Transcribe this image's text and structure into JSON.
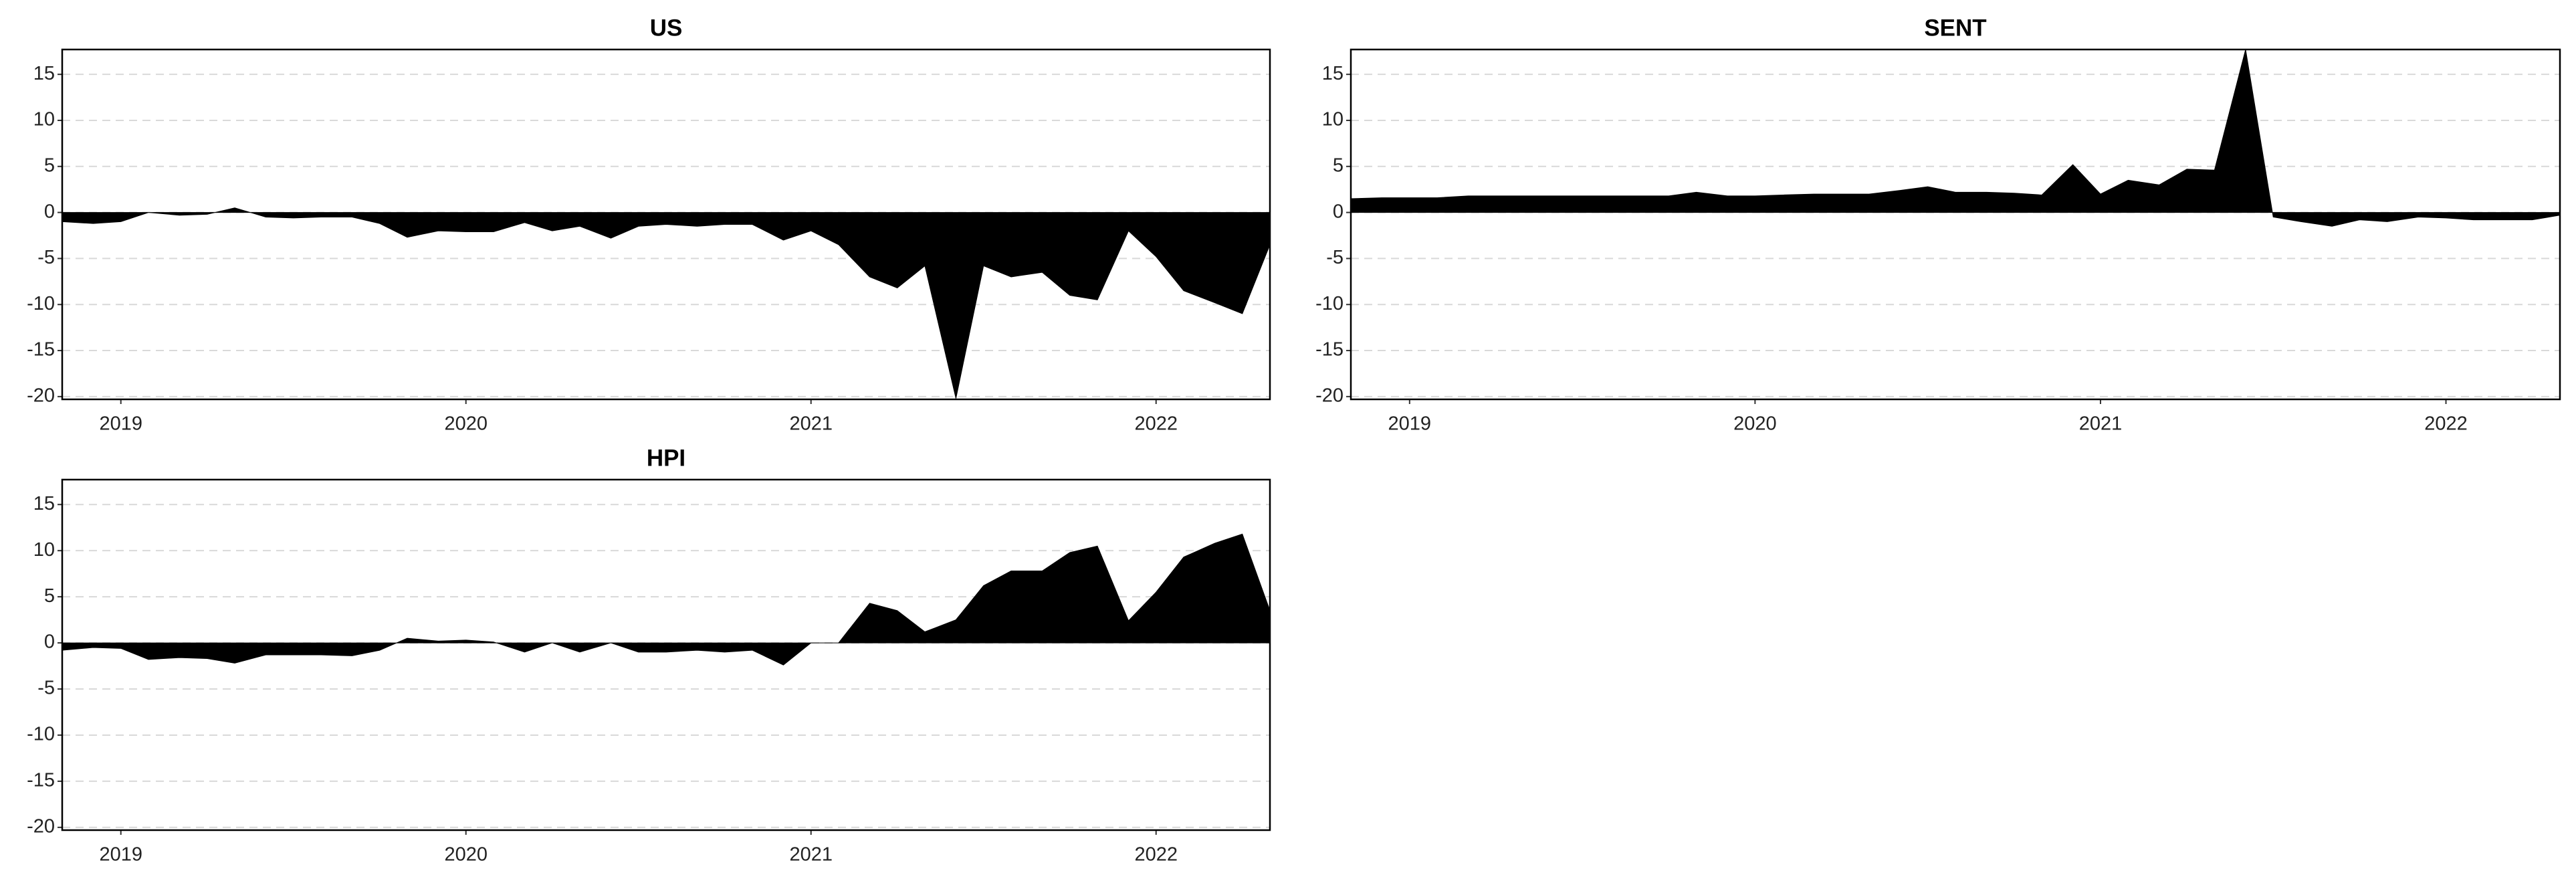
{
  "chart_data": [
    {
      "type": "area",
      "title": "US",
      "color": "#000000",
      "grid": true,
      "x": [
        2018.83,
        2018.92,
        2019.0,
        2019.08,
        2019.17,
        2019.25,
        2019.33,
        2019.42,
        2019.5,
        2019.58,
        2019.67,
        2019.75,
        2019.83,
        2019.92,
        2020.0,
        2020.08,
        2020.17,
        2020.25,
        2020.33,
        2020.42,
        2020.5,
        2020.58,
        2020.67,
        2020.75,
        2020.83,
        2020.92,
        2021.0,
        2021.08,
        2021.17,
        2021.25,
        2021.33,
        2021.42,
        2021.5,
        2021.58,
        2021.67,
        2021.75,
        2021.83,
        2021.92,
        2022.0,
        2022.08,
        2022.17,
        2022.25,
        2022.33
      ],
      "values": [
        -1,
        -1.2,
        -1,
        0,
        -0.3,
        -0.2,
        0.5,
        -0.5,
        -0.6,
        -0.5,
        -0.5,
        -1.2,
        -2.7,
        -2,
        -2.1,
        -2.1,
        -1.1,
        -2,
        -1.5,
        -2.8,
        -1.5,
        -1.3,
        -1.5,
        -1.3,
        -1.3,
        -3,
        -2,
        -3.5,
        -7,
        -8.2,
        -5.8,
        -20.2,
        -5.8,
        -7,
        -6.5,
        -9,
        -9.5,
        -2,
        -4.8,
        -8.5,
        -9.8,
        -11,
        -3.5
      ],
      "xlim": [
        2018.83,
        2022.33
      ],
      "xticks": [
        2019,
        2020,
        2021,
        2022
      ],
      "ylim": [
        -20.3,
        17.7
      ],
      "yticks": [
        -20,
        -15,
        -10,
        -5,
        0,
        5,
        10,
        15
      ]
    },
    {
      "type": "area",
      "title": "SENT",
      "color": "#000000",
      "grid": true,
      "x": [
        2018.83,
        2018.92,
        2019.0,
        2019.08,
        2019.17,
        2019.25,
        2019.33,
        2019.42,
        2019.5,
        2019.58,
        2019.67,
        2019.75,
        2019.83,
        2019.92,
        2020.0,
        2020.08,
        2020.17,
        2020.25,
        2020.33,
        2020.42,
        2020.5,
        2020.58,
        2020.67,
        2020.75,
        2020.83,
        2020.92,
        2021.0,
        2021.08,
        2021.17,
        2021.25,
        2021.33,
        2021.42,
        2021.5,
        2021.58,
        2021.67,
        2021.75,
        2021.83,
        2021.92,
        2022.0,
        2022.08,
        2022.17,
        2022.25,
        2022.33
      ],
      "values": [
        1.5,
        1.6,
        1.6,
        1.6,
        1.8,
        1.8,
        1.8,
        1.8,
        1.8,
        1.8,
        1.8,
        1.8,
        2.2,
        1.8,
        1.8,
        1.9,
        2.0,
        2.0,
        2.0,
        2.4,
        2.8,
        2.2,
        2.2,
        2.1,
        1.9,
        5.2,
        2.0,
        3.5,
        3.0,
        4.7,
        4.6,
        17.7,
        -0.5,
        -1,
        -1.5,
        -0.8,
        -1,
        -0.5,
        -0.6,
        -0.8,
        -0.8,
        -0.8,
        -0.3
      ],
      "xlim": [
        2018.83,
        2022.33
      ],
      "xticks": [
        2019,
        2020,
        2021,
        2022
      ],
      "ylim": [
        -20.3,
        17.7
      ],
      "yticks": [
        -20,
        -15,
        -10,
        -5,
        0,
        5,
        10,
        15
      ]
    },
    {
      "type": "area",
      "title": "HPI",
      "color": "#000000",
      "grid": true,
      "x": [
        2018.83,
        2018.92,
        2019.0,
        2019.08,
        2019.17,
        2019.25,
        2019.33,
        2019.42,
        2019.5,
        2019.58,
        2019.67,
        2019.75,
        2019.83,
        2019.92,
        2020.0,
        2020.08,
        2020.17,
        2020.25,
        2020.33,
        2020.42,
        2020.5,
        2020.58,
        2020.67,
        2020.75,
        2020.83,
        2020.92,
        2021.0,
        2021.08,
        2021.17,
        2021.25,
        2021.33,
        2021.42,
        2021.5,
        2021.58,
        2021.67,
        2021.75,
        2021.83,
        2021.92,
        2022.0,
        2022.08,
        2022.17,
        2022.25,
        2022.33
      ],
      "values": [
        -0.8,
        -0.5,
        -0.6,
        -1.8,
        -1.6,
        -1.7,
        -2.2,
        -1.3,
        -1.3,
        -1.3,
        -1.4,
        -0.8,
        0.5,
        0.2,
        0.3,
        0.1,
        -1,
        0,
        -1,
        0,
        -1,
        -1,
        -0.8,
        -1,
        -0.8,
        -2.4,
        0,
        0,
        4.3,
        3.5,
        1.2,
        2.5,
        6.2,
        7.8,
        7.8,
        9.8,
        10.5,
        2.4,
        5.5,
        9.3,
        10.8,
        11.8,
        3.5
      ],
      "xlim": [
        2018.83,
        2022.33
      ],
      "xticks": [
        2019,
        2020,
        2021,
        2022
      ],
      "ylim": [
        -20.3,
        17.7
      ],
      "yticks": [
        -20,
        -15,
        -10,
        -5,
        0,
        5,
        10,
        15
      ]
    }
  ]
}
